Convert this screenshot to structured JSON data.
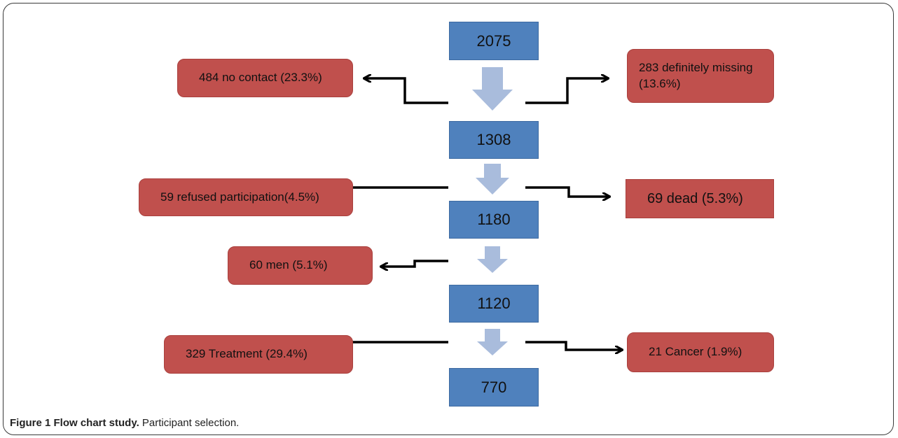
{
  "flow": {
    "main_counts": [
      "2075",
      "1308",
      "1180",
      "1120",
      "770"
    ],
    "left_exclusions": [
      "484 no contact (23.3%)",
      "59 refused participation(4.5%)",
      "60 men (5.1%)",
      "329 Treatment (29.4%)"
    ],
    "right_exclusions": [
      "283 definitely missing (13.6%)",
      "69 dead (5.3%)",
      "21 Cancer (1.9%)"
    ]
  },
  "caption": {
    "title": "Figure 1 Flow chart study.",
    "text": "Participant selection."
  },
  "colors": {
    "main_box": "#4f81bd",
    "exclusion_box": "#c0504d",
    "down_arrow": "#a9bcdc",
    "connector": "#000000"
  }
}
